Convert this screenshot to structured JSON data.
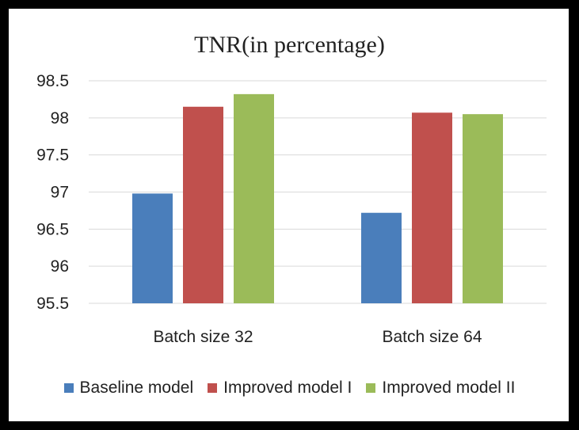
{
  "chart_data": {
    "type": "bar",
    "title": "TNR(in percentage)",
    "xlabel": "",
    "ylabel": "",
    "categories": [
      "Batch size 32",
      "Batch size 64"
    ],
    "series": [
      {
        "name": "Baseline model",
        "values": [
          96.98,
          96.72
        ],
        "color": "#4a7ebb"
      },
      {
        "name": "Improved model I",
        "values": [
          98.15,
          98.07
        ],
        "color": "#c0504d"
      },
      {
        "name": "Improved model II",
        "values": [
          98.32,
          98.05
        ],
        "color": "#9bbb59"
      }
    ],
    "ylim": [
      95.5,
      98.5
    ],
    "yticks": [
      "98.5",
      "98",
      "97.5",
      "97",
      "96.5",
      "96",
      "95.5"
    ],
    "grid": true,
    "legend_position": "bottom"
  }
}
